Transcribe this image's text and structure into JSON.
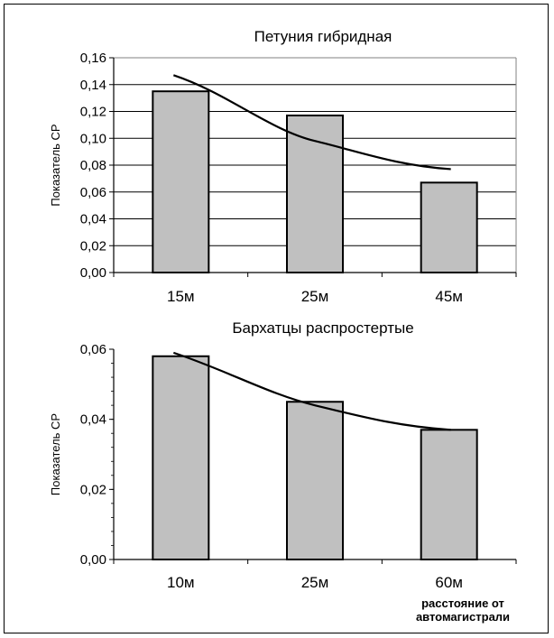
{
  "chart_data": [
    {
      "type": "bar",
      "title": "Петуния гибридная",
      "ylabel": "Показатель СР",
      "xlabel": "",
      "categories": [
        "15м",
        "25м",
        "45м"
      ],
      "values": [
        0.135,
        0.117,
        0.067
      ],
      "trendline": [
        0.147,
        0.098,
        0.077
      ],
      "ylim": [
        0,
        0.16
      ],
      "yticks": [
        0.0,
        0.02,
        0.04,
        0.06,
        0.08,
        0.1,
        0.12,
        0.14,
        0.16
      ],
      "ytick_labels": [
        "0,00",
        "0,02",
        "0,04",
        "0,06",
        "0,08",
        "0,10",
        "0,12",
        "0,14",
        "0,16"
      ],
      "grid": true,
      "bar_color": "#c0c0c0"
    },
    {
      "type": "bar",
      "title": "Бархатцы распростертые",
      "ylabel": "Показатель СР",
      "xlabel": "расстояние от автомагистрали",
      "xlabel_lines": [
        "расстояние от",
        "автомагистрали"
      ],
      "categories": [
        "10м",
        "25м",
        "60м"
      ],
      "values": [
        0.058,
        0.045,
        0.037
      ],
      "trendline": [
        0.059,
        0.044,
        0.037
      ],
      "ylim": [
        0,
        0.06
      ],
      "yticks": [
        0.0,
        0.02,
        0.04,
        0.06
      ],
      "ytick_labels": [
        "0,00",
        "0,02",
        "0,04",
        "0,06"
      ],
      "grid": false,
      "bar_color": "#c0c0c0"
    }
  ]
}
